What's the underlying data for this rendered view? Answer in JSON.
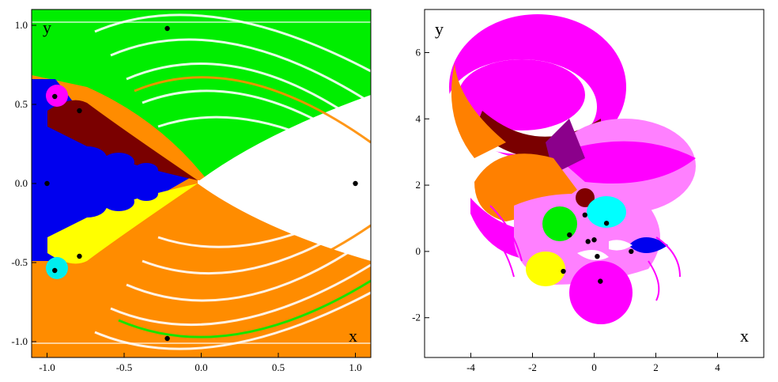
{
  "chart_data": [
    {
      "type": "scatter",
      "description_kind": "basins-of-attraction",
      "xlabel": "x",
      "ylabel": "y",
      "xlim": [
        -1.1,
        1.1
      ],
      "ylim": [
        -1.1,
        1.1
      ],
      "xticks": [
        "-1.0",
        "-0.5",
        "0.0",
        "0.5",
        "1.0"
      ],
      "yticks": [
        "1.0",
        "0.5",
        "0.0",
        "-0.5",
        "-1.0"
      ],
      "series": [
        {
          "x": [
            1.0,
            -0.22,
            -0.22,
            -0.95,
            -0.95,
            -0.79,
            -0.79,
            -1.0
          ],
          "y": [
            0.0,
            0.98,
            -0.98,
            0.55,
            -0.55,
            0.46,
            -0.46,
            0.0
          ]
        }
      ],
      "basin_colors": {
        "green": "#00ee00",
        "orange": "#ff8c00",
        "blue": "#0000ee",
        "maroon": "#7a0000",
        "yellow": "#ffff00",
        "magenta": "#ff00ff",
        "cyan": "#00eeee",
        "white": "#ffffff"
      }
    },
    {
      "type": "scatter",
      "description_kind": "basins-of-attraction",
      "xlabel": "x",
      "ylabel": "y",
      "xlim": [
        -5.5,
        5.5
      ],
      "ylim": [
        -3.2,
        7.3
      ],
      "xticks": [
        "-4",
        "-2",
        "0",
        "2",
        "4"
      ],
      "yticks": [
        "6",
        "4",
        "2",
        "0",
        "-2"
      ],
      "series": [
        {
          "x": [
            -0.8,
            -1.0,
            0.4,
            -0.2,
            0.0,
            0.1,
            0.2,
            1.2,
            -0.3
          ],
          "y": [
            0.5,
            -0.6,
            0.85,
            0.3,
            0.35,
            -0.15,
            -0.9,
            0.0,
            1.1
          ]
        }
      ],
      "basin_colors": {
        "magenta": "#ff00ff",
        "pink": "#ff80ff",
        "purple": "#8b008b",
        "orange": "#ff8000",
        "maroon": "#800000",
        "green": "#00ee00",
        "cyan": "#00ffff",
        "blue": "#0000ee",
        "yellow": "#ffff00",
        "white": "#ffffff"
      }
    }
  ]
}
